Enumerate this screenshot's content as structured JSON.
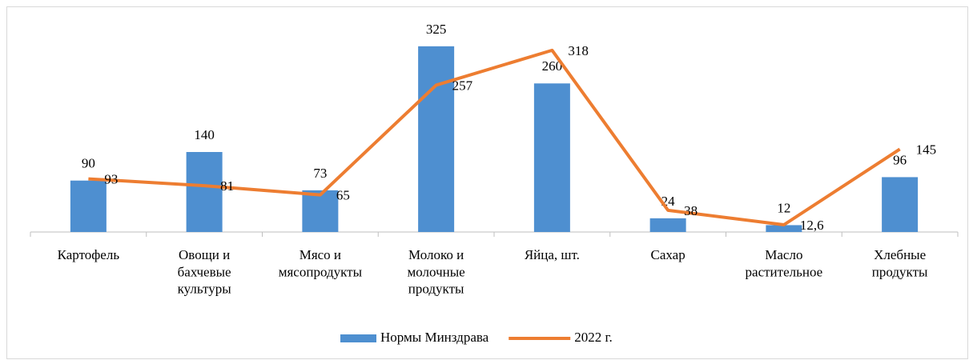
{
  "chart_data": {
    "type": "bar-line",
    "categories": [
      "Картофель",
      "Овощи и\nбахчевые\nкультуры",
      "Мясо и\nмясопродукты",
      "Молоко и\nмолочные\nпродукты",
      "Яйца, шт.",
      "Сахар",
      "Масло\nрастительное",
      "Хлебные\nпродукты"
    ],
    "series": [
      {
        "name": "Нормы Минздрава",
        "type": "bar",
        "color": "#4e8fd0",
        "values": [
          90,
          140,
          73,
          325,
          260,
          24,
          12,
          96
        ]
      },
      {
        "name": "2022 г.",
        "type": "line",
        "color": "#ed7d31",
        "values": [
          93,
          81,
          65,
          257,
          318,
          38,
          12.6,
          145
        ],
        "value_labels": [
          "93",
          "81",
          "65",
          "257",
          "318",
          "38",
          "12,6",
          "145"
        ]
      }
    ],
    "ylim": [
      0,
      350
    ],
    "legend": "bottom"
  }
}
